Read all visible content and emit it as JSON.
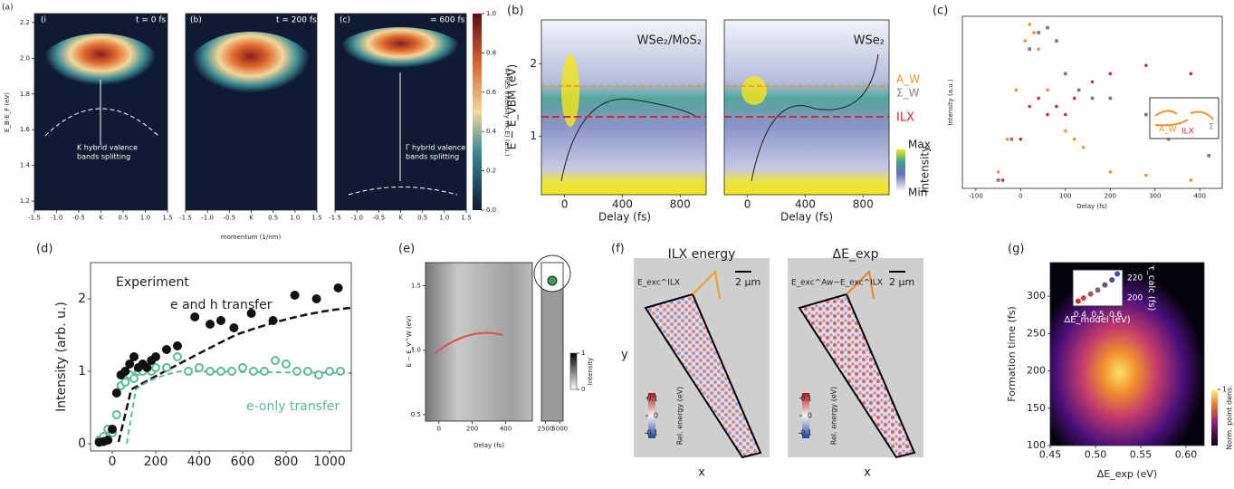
{
  "panels": {
    "a": {
      "label": "(a)",
      "subplots": [
        {
          "tag": "(i",
          "time": "t = 0 fs"
        },
        {
          "tag": "(b)",
          "time": "t = 200 fs"
        },
        {
          "tag": "(c)",
          "time": "= 600 fs"
        }
      ],
      "xlim": [
        -1.5,
        1.5
      ],
      "xticks": [
        -1.5,
        {
          "value": -1,
          "label": "-1.0"
        },
        -0.5,
        {
          "value": 0,
          "label": "K"
        },
        0.5,
        {
          "value": 1,
          "label": "1.0"
        },
        1.5
      ],
      "ylim": [
        1.15,
        2.25
      ],
      "yticks": [
        1.2,
        1.4,
        1.6,
        1.8,
        {
          "value": 2,
          "label": "2.0"
        },
        2.2
      ],
      "xlabel": "momentum (1/nm)",
      "ylabel": "E_B-E_F (eV)",
      "annotation_k": [
        "K hybrid valence",
        "bands splitting"
      ],
      "annotation_gamma": [
        "Γ hybrid valence",
        "bands splitting"
      ],
      "colorbar": {
        "label": "APRES Intensity I(k,E) (a.u.)",
        "ylim": [
          0,
          1
        ],
        "yticks": [
          {
            "value": 0,
            "label": "0.0"
          },
          0.2,
          0.4,
          0.6,
          0.8,
          {
            "value": 1,
            "label": "1.0"
          }
        ]
      }
    },
    "b": {
      "label": "(b)",
      "titles": [
        "WSe₂/MoS₂",
        "WSe₂"
      ],
      "xlim": [
        -160,
        980
      ],
      "xticks": [
        0,
        400,
        800
      ],
      "ylim": [
        0.2,
        2.6
      ],
      "yticks": [
        1,
        2
      ],
      "xlabel": "Delay (fs)",
      "ylabel": "E − E_VBM (eV)",
      "levels": {
        "A_W": "A_W",
        "Sigma_W": "Σ_W",
        "ILX": "ILX"
      },
      "colorbar": {
        "max": "Max",
        "min": "Min",
        "label": "Intensity"
      }
    },
    "c": {
      "label": "(c)",
      "xlim": [
        -130,
        450
      ],
      "xticks": [
        -100,
        0,
        100,
        200,
        300,
        400
      ],
      "ylim": [
        0,
        1.05
      ],
      "xlabel": "Delay (fs)",
      "ylabel": "Intensity (a.u.)",
      "inset": {
        "a": "A_W",
        "ilx": "ILX",
        "sigma": "Σ"
      },
      "series": [
        {
          "name": "A_W",
          "color": "#f0922b",
          "x": [
            -50,
            -30,
            -10,
            10,
            20,
            30,
            40,
            60,
            80,
            100,
            120,
            140,
            200,
            280,
            380
          ],
          "values": [
            0.1,
            0.3,
            0.6,
            0.9,
            1.0,
            0.95,
            0.85,
            0.6,
            0.5,
            0.35,
            0.3,
            0.25,
            0.1,
            0.08,
            0.05
          ]
        },
        {
          "name": "Σ",
          "color": "#777777",
          "x": [
            -50,
            -20,
            20,
            40,
            60,
            80,
            100,
            130,
            160,
            200,
            280,
            330,
            420
          ],
          "values": [
            0.05,
            0.3,
            0.85,
            0.95,
            0.98,
            0.9,
            0.7,
            0.6,
            0.55,
            0.55,
            0.45,
            0.3,
            0.2
          ]
        },
        {
          "name": "ILX",
          "color": "#d62839",
          "x": [
            -40,
            0,
            20,
            40,
            60,
            80,
            100,
            120,
            160,
            200,
            280,
            380
          ],
          "values": [
            0.05,
            0.3,
            0.5,
            0.55,
            0.45,
            0.5,
            0.45,
            0.55,
            0.65,
            0.7,
            0.75,
            0.7
          ]
        }
      ]
    },
    "d": {
      "label": "(d)",
      "xlim": [
        -100,
        1100
      ],
      "xticks": [
        0,
        200,
        400,
        600,
        800,
        1000
      ],
      "ylim": [
        -0.1,
        2.5
      ],
      "yticks": [
        0,
        1,
        2
      ],
      "ylabel": "Intensity (arb. u.)",
      "legend_title": "Experiment",
      "series": [
        {
          "name": "e and h transfer",
          "color": "#111111",
          "x": [
            -60,
            -40,
            -20,
            0,
            20,
            40,
            60,
            80,
            100,
            120,
            140,
            160,
            180,
            200,
            250,
            300,
            380,
            450,
            500,
            560,
            640,
            740,
            840,
            940,
            1040
          ],
          "values": [
            0.02,
            0.03,
            0.05,
            0.2,
            0.7,
            0.95,
            1.0,
            1.1,
            1.2,
            1.05,
            1.1,
            1.05,
            1.15,
            1.2,
            1.3,
            1.35,
            1.75,
            1.65,
            1.7,
            1.6,
            1.8,
            1.7,
            2.05,
            2.0,
            2.15
          ]
        },
        {
          "name": "e-only transfer",
          "color": "#5dbb8f",
          "x": [
            -60,
            -40,
            -20,
            0,
            20,
            40,
            60,
            80,
            100,
            120,
            140,
            160,
            180,
            200,
            250,
            300,
            350,
            400,
            450,
            500,
            550,
            600,
            650,
            700,
            750,
            800,
            850,
            900,
            950,
            1000,
            1050
          ],
          "values": [
            0.05,
            0.1,
            0.2,
            0.15,
            0.4,
            0.8,
            0.85,
            0.95,
            0.9,
            1.0,
            1.0,
            1.05,
            1.0,
            1.05,
            1.05,
            1.2,
            1.0,
            1.05,
            1.0,
            1.0,
            1.0,
            1.05,
            1.0,
            1.0,
            1.15,
            1.1,
            1.0,
            1.0,
            0.95,
            1.0,
            1.0
          ]
        }
      ]
    },
    "e": {
      "label": "(e)",
      "xlim": [
        -80,
        560
      ],
      "xticks": [
        0,
        200,
        400
      ],
      "x2lim": [
        1800,
        5600
      ],
      "x2ticks": [
        2500,
        5000
      ],
      "ylim": [
        0.45,
        1.68
      ],
      "yticks": [
        0.5,
        {
          "value": 1,
          "label": "1.0"
        },
        1.5
      ],
      "xlabel": "Delay (fs)",
      "ylabel": "E − E_V^W (eV)",
      "colorbar": {
        "label": "Intensity",
        "ylim": [
          0,
          1
        ],
        "yticks": [
          0,
          1
        ]
      }
    },
    "f": {
      "label": "(f)",
      "titles": [
        "ILX energy",
        "ΔE_exp"
      ],
      "insets": [
        "E_exc^ILX",
        "E_exc^Aw−E_exc^ILX"
      ],
      "scale": "2 µm",
      "xlabel": "x",
      "ylabel": "y",
      "colorbar": {
        "label": "Rel. energy (eV)",
        "ylim": [
          -0.13,
          0.13
        ],
        "yticks": [
          0.1,
          0,
          -0.1
        ]
      }
    },
    "g": {
      "label": "(g)",
      "xlim": [
        0.45,
        0.62
      ],
      "xticks": [
        0.45,
        {
          "value": 0.5,
          "label": "0.50"
        },
        0.55,
        {
          "value": 0.6,
          "label": "0.60"
        }
      ],
      "ylim": [
        100,
        345
      ],
      "yticks": [
        100,
        150,
        200,
        250,
        300
      ],
      "xlabel": "ΔE_exp (eV)",
      "ylabel": "Formation time (fs)",
      "inset": {
        "xlabel": "ΔE_model (eV)",
        "ylabel": "τ_calc (fs)",
        "xlim": [
          0.36,
          0.64
        ],
        "xticks": [
          0.4,
          0.5,
          0.6
        ],
        "ylim": [
          192,
          228
        ],
        "yticks": [
          200,
          220
        ],
        "x": [
          0.39,
          0.42,
          0.46,
          0.5,
          0.54,
          0.58,
          0.61
        ],
        "values": [
          197,
          200,
          204,
          208,
          213,
          218,
          224
        ],
        "colors": [
          "#e0272b",
          "#c4463f",
          "#9a5a5a",
          "#7a6470",
          "#5a5a8a",
          "#4a4a9a",
          "#3a4ab0"
        ]
      },
      "colorbar": {
        "label": "Norm. point dens.",
        "ylim": [
          0,
          1
        ],
        "yticks": [
          1
        ]
      }
    }
  }
}
